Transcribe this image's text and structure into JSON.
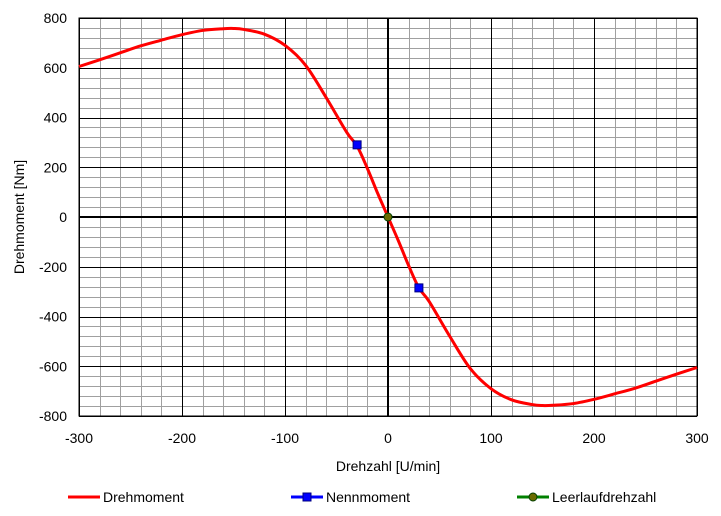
{
  "chart_data": {
    "type": "line",
    "xlabel": "Drehzahl [U/min]",
    "ylabel": "Drehmoment [Nm]",
    "xlim": [
      -300,
      300
    ],
    "ylim": [
      -800,
      800
    ],
    "x_major_ticks": [
      -300,
      -200,
      -100,
      0,
      100,
      200,
      300
    ],
    "y_major_ticks": [
      -800,
      -600,
      -400,
      -200,
      0,
      200,
      400,
      600,
      800
    ],
    "x_tick_labels": [
      "-300",
      "-200",
      "-100",
      "0",
      "100",
      "200",
      "300"
    ],
    "y_tick_labels": [
      "-800",
      "-600",
      "-400",
      "-200",
      "0",
      "200",
      "400",
      "600",
      "800"
    ],
    "x_minor_step": 20,
    "y_minor_step": 40,
    "grid": true,
    "legend_position": "bottom",
    "series": [
      {
        "name": "Drehmoment",
        "kind": "line",
        "color": "#ff0000",
        "x": [
          -300,
          -280,
          -260,
          -240,
          -220,
          -200,
          -180,
          -160,
          -150,
          -140,
          -120,
          -100,
          -80,
          -60,
          -40,
          -30,
          -20,
          -10,
          0,
          10,
          20,
          30,
          40,
          60,
          80,
          100,
          120,
          140,
          150,
          160,
          180,
          200,
          220,
          240,
          260,
          280,
          300
        ],
        "y": [
          605,
          632,
          660,
          688,
          711,
          733,
          750,
          757,
          758,
          754,
          735,
          690,
          610,
          480,
          340,
          285,
          195,
          95,
          0,
          -95,
          -195,
          -285,
          -340,
          -480,
          -610,
          -690,
          -735,
          -754,
          -758,
          -757,
          -750,
          -733,
          -711,
          -688,
          -660,
          -632,
          -605
        ]
      },
      {
        "name": "Nennmoment",
        "kind": "marker",
        "color": "#0000ff",
        "marker": "square",
        "x": [
          -30,
          30
        ],
        "y": [
          290,
          -285
        ]
      },
      {
        "name": "Leerlaufdrehzahl",
        "kind": "marker",
        "color": "#008000",
        "marker": "circle",
        "x": [
          0
        ],
        "y": [
          0
        ]
      }
    ]
  },
  "colors": {
    "curve": "#ff0000",
    "nennmoment_marker": "#0000ff",
    "leerlauf_marker": "#008000",
    "grid_major": "#000000",
    "grid_minor": "#a0a0a0"
  }
}
